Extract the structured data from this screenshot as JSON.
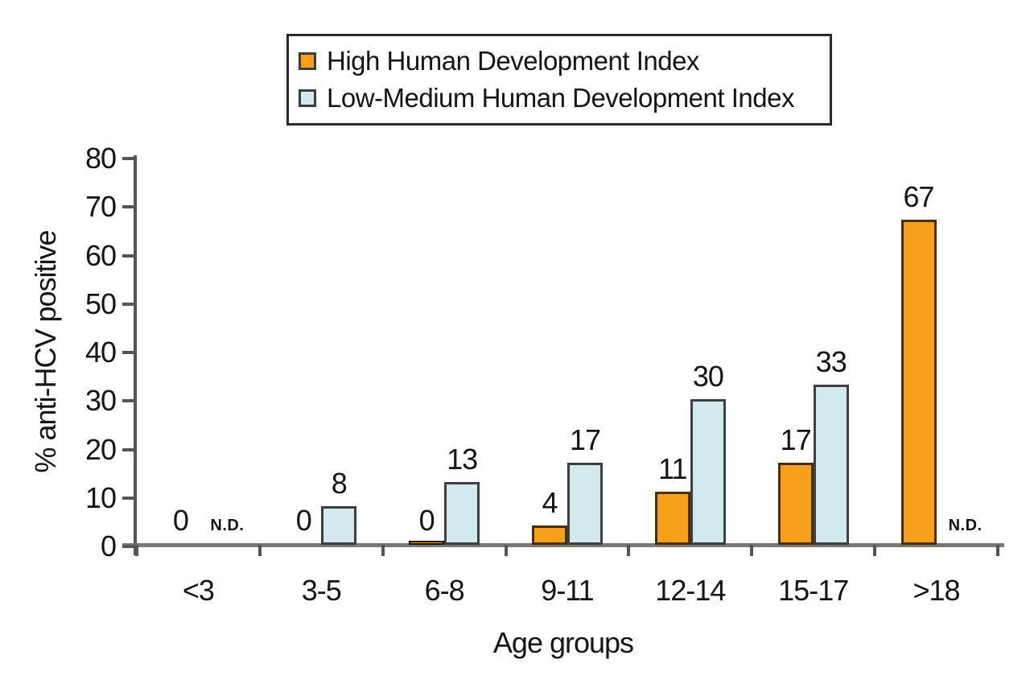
{
  "chart_data": {
    "type": "bar",
    "title": "",
    "xlabel": "Age groups",
    "ylabel": "% anti-HCV positive",
    "categories": [
      "<3",
      "3-5",
      "6-8",
      "9-11",
      "12-14",
      "15-17",
      ">18"
    ],
    "series": [
      {
        "name": "High Human Development Index",
        "color": "#F8A01C",
        "values": [
          0,
          0,
          0,
          4,
          11,
          17,
          67
        ],
        "labels": [
          "0",
          "0",
          "0",
          "4",
          "11",
          "17",
          "67"
        ],
        "zero_sliver": [
          false,
          false,
          true,
          false,
          false,
          false,
          false
        ]
      },
      {
        "name": "Low-Medium Human Development Index",
        "color": "#D2E9EF",
        "values": [
          null,
          8,
          13,
          17,
          30,
          33,
          null
        ],
        "labels": [
          "N.D.",
          "8",
          "13",
          "17",
          "30",
          "33",
          "N.D."
        ]
      }
    ],
    "no_data_text": "N.D.",
    "ylim": [
      0,
      80
    ],
    "yticks": [
      0,
      10,
      20,
      30,
      40,
      50,
      60,
      70,
      80
    ],
    "grid": false,
    "legend_position": "top-center"
  }
}
